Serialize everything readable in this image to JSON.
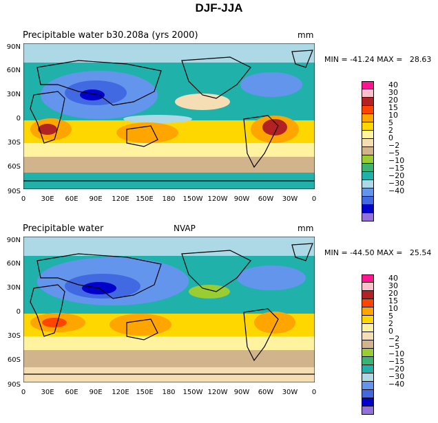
{
  "figure_title": "DJF-JJA",
  "panels": [
    {
      "title": "Precipitable water  b30.208a (yrs 2000)",
      "center": "",
      "units": "mm",
      "min_label": "MIN =",
      "min": "-41.24",
      "max_label": "MAX =",
      "max": "28.63"
    },
    {
      "title": "Precipitable water",
      "center": "NVAP",
      "units": "mm",
      "min_label": "MIN =",
      "min": "-44.50",
      "max_label": "MAX =",
      "max": "25.54"
    }
  ],
  "y_ticks": [
    "90N",
    "60N",
    "30N",
    "0",
    "30S",
    "60S",
    "90S"
  ],
  "x_ticks": [
    "0",
    "30E",
    "60E",
    "90E",
    "120E",
    "150E",
    "180",
    "150W",
    "120W",
    "90W",
    "60W",
    "30W",
    "0"
  ],
  "legend_levels": [
    "40",
    "30",
    "20",
    "15",
    "10",
    "5",
    "2",
    "0",
    "−2",
    "−5",
    "−10",
    "−15",
    "−20",
    "−30",
    "−40"
  ],
  "legend_colors": [
    "#ff1493",
    "#ffc0cb",
    "#b22222",
    "#ff4500",
    "#ffa500",
    "#ffd700",
    "#fff3a0",
    "#f5deb3",
    "#d2b48c",
    "#9acd32",
    "#3cb371",
    "#20b2aa",
    "#add8e6",
    "#6495ed",
    "#4169e1",
    "#0000cd",
    "#9370db"
  ]
}
